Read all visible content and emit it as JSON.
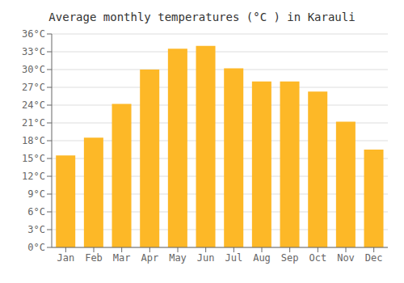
{
  "chart_data": {
    "type": "bar",
    "title": "Average monthly temperatures (°C ) in Karauli",
    "categories": [
      "Jan",
      "Feb",
      "Mar",
      "Apr",
      "May",
      "Jun",
      "Jul",
      "Aug",
      "Sep",
      "Oct",
      "Nov",
      "Dec"
    ],
    "values": [
      15.5,
      18.5,
      24.2,
      30.0,
      33.5,
      34.0,
      30.2,
      28.0,
      28.0,
      26.3,
      21.2,
      16.5
    ],
    "color": "#FDB827",
    "ylim": [
      0,
      36
    ],
    "yticks": [
      {
        "value": 0,
        "label": "0°C"
      },
      {
        "value": 3,
        "label": "3°C"
      },
      {
        "value": 6,
        "label": "6°C"
      },
      {
        "value": 9,
        "label": "9°C"
      },
      {
        "value": 12,
        "label": "12°C"
      },
      {
        "value": 15,
        "label": "15°C"
      },
      {
        "value": 18,
        "label": "18°C"
      },
      {
        "value": 21,
        "label": "21°C"
      },
      {
        "value": 24,
        "label": "24°C"
      },
      {
        "value": 27,
        "label": "27°C"
      },
      {
        "value": 30,
        "label": "30°C"
      },
      {
        "value": 33,
        "label": "33°C"
      },
      {
        "value": 36,
        "label": "36°C"
      }
    ],
    "grid": true
  }
}
